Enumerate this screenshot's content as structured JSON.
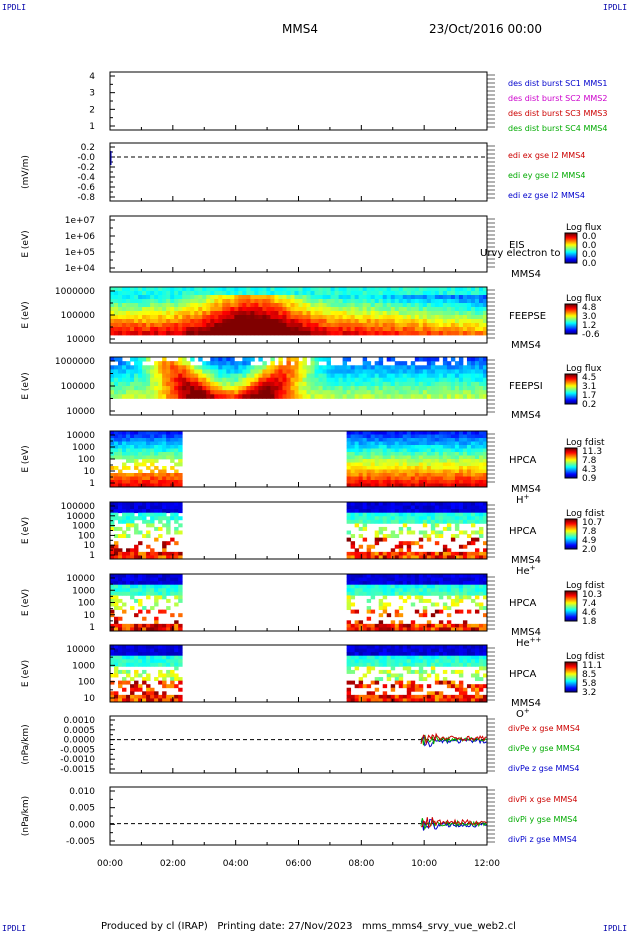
{
  "header": {
    "corner_label": "IPDLI",
    "spacecraft": "MMS4",
    "datetime": "23/Oct/2016 00:00"
  },
  "footer": {
    "text": "Produced by cl (IRAP)   Printing date: 27/Nov/2023   mms_mms4_srvy_vue_web2.cl"
  },
  "colors": {
    "mms1": "#0000cc",
    "mms2": "#cc00cc",
    "mms3": "#cc0000",
    "mms4": "#00aa00",
    "x": "#cc0000",
    "y": "#00aa00",
    "z": "#0000cc"
  },
  "chart_data": [
    {
      "type": "line",
      "panel": "burst",
      "yticks": [
        "4",
        "3",
        "2",
        "1"
      ],
      "ylim": [
        0.5,
        4.5
      ],
      "ylabel": "",
      "legend": [
        {
          "text": "des dist burst SC1 MMS1",
          "color": "#0000cc"
        },
        {
          "text": "des dist burst SC2 MMS2",
          "color": "#cc00cc"
        },
        {
          "text": "des dist burst SC3 MMS3",
          "color": "#cc0000"
        },
        {
          "text": "des dist burst SC4 MMS4",
          "color": "#00aa00"
        }
      ]
    },
    {
      "type": "line",
      "panel": "edi",
      "yticks": [
        "0.2",
        "-0.0",
        "-0.2",
        "-0.4",
        "-0.6",
        "-0.8"
      ],
      "ylim": [
        -0.85,
        0.25
      ],
      "ylabel": "(mV/m)",
      "legend": [
        {
          "text": "edi ex gse l2 MMS4",
          "color": "#cc0000"
        },
        {
          "text": "edi ey gse l2 MMS4",
          "color": "#00aa00"
        },
        {
          "text": "edi ez gse l2 MMS4",
          "color": "#0000cc"
        }
      ]
    },
    {
      "type": "heatmap",
      "panel": "eis",
      "yticks": [
        "1e+07",
        "1e+06",
        "1e+05",
        "1e+04"
      ],
      "ylim": [
        10000,
        10000000
      ],
      "ylabel": "E (eV)",
      "instrument": "EIS",
      "spacecraft": "MMS4",
      "overlay_text": "Urvy electron to",
      "colorbar": {
        "title": "Log flux",
        "ticks": [
          "0.0",
          "0.0",
          "0.0",
          "0.0"
        ]
      }
    },
    {
      "type": "heatmap",
      "panel": "feepse",
      "yticks": [
        "1000000",
        "100000",
        "10000"
      ],
      "ylim": [
        10000,
        1000000
      ],
      "ylabel": "E (eV)",
      "instrument": "FEEPSE",
      "spacecraft": "MMS4",
      "colorbar": {
        "title": "Log flux",
        "ticks": [
          "4.8",
          "3.0",
          "1.2",
          "-0.6"
        ]
      }
    },
    {
      "type": "heatmap",
      "panel": "feepsi",
      "yticks": [
        "1000000",
        "100000",
        "10000"
      ],
      "ylim": [
        10000,
        1000000
      ],
      "ylabel": "E (eV)",
      "instrument": "FEEPSI",
      "spacecraft": "MMS4",
      "colorbar": {
        "title": "Log flux",
        "ticks": [
          "4.5",
          "3.1",
          "1.7",
          "0.2"
        ]
      }
    },
    {
      "type": "heatmap",
      "panel": "hpca-h",
      "yticks": [
        "10000",
        "1000",
        "100",
        "10",
        "1"
      ],
      "ylim": [
        1,
        10000
      ],
      "ylabel": "E (eV)",
      "instrument": "HPCA",
      "spacecraft": "MMS4",
      "species": "H",
      "species_charge": "+",
      "colorbar": {
        "title": "Log fdist",
        "ticks": [
          "11.3",
          "7.8",
          "4.3",
          "0.9"
        ]
      }
    },
    {
      "type": "heatmap",
      "panel": "hpca-he",
      "yticks": [
        "100000",
        "10000",
        "1000",
        "100",
        "10",
        "1"
      ],
      "ylim": [
        1,
        100000
      ],
      "ylabel": "E (eV)",
      "instrument": "HPCA",
      "spacecraft": "MMS4",
      "species": "He",
      "species_charge": "+",
      "colorbar": {
        "title": "Log fdist",
        "ticks": [
          "10.7",
          "7.8",
          "4.9",
          "2.0"
        ]
      }
    },
    {
      "type": "heatmap",
      "panel": "hpca-hepp",
      "yticks": [
        "10000",
        "1000",
        "100",
        "10",
        "1"
      ],
      "ylim": [
        1,
        10000
      ],
      "ylabel": "E (eV)",
      "instrument": "HPCA",
      "spacecraft": "MMS4",
      "species": "He",
      "species_charge": "++",
      "colorbar": {
        "title": "Log fdist",
        "ticks": [
          "10.3",
          "7.4",
          "4.6",
          "1.8"
        ]
      }
    },
    {
      "type": "heatmap",
      "panel": "hpca-o",
      "yticks": [
        "10000",
        "1000",
        "100",
        "10"
      ],
      "ylim": [
        3,
        10000
      ],
      "ylabel": "E (eV)",
      "instrument": "HPCA",
      "spacecraft": "MMS4",
      "species": "O",
      "species_charge": "+",
      "colorbar": {
        "title": "Log fdist",
        "ticks": [
          "11.1",
          "8.5",
          "5.8",
          "3.2"
        ]
      }
    },
    {
      "type": "line",
      "panel": "divpe",
      "yticks": [
        "0.0010",
        "0.0005",
        "0.0000",
        "-0.0005",
        "-0.0010",
        "-0.0015"
      ],
      "ylim": [
        -0.0017,
        0.0012
      ],
      "ylabel": "(nPa/km)",
      "legend": [
        {
          "text": "divPe x gse MMS4",
          "color": "#cc0000"
        },
        {
          "text": "divPe y gse MMS4",
          "color": "#00aa00"
        },
        {
          "text": "divPe z gse MMS4",
          "color": "#0000cc"
        }
      ]
    },
    {
      "type": "line",
      "panel": "divpi",
      "yticks": [
        "0.010",
        "0.005",
        "0.000",
        "-0.005"
      ],
      "ylim": [
        -0.007,
        0.012
      ],
      "ylabel": "(nPa/km)",
      "legend": [
        {
          "text": "divPi x gse MMS4",
          "color": "#cc0000"
        },
        {
          "text": "divPi y gse MMS4",
          "color": "#00aa00"
        },
        {
          "text": "divPi z gse MMS4",
          "color": "#0000cc"
        }
      ]
    }
  ],
  "time_axis": {
    "ticks": [
      "00:00",
      "02:00",
      "04:00",
      "06:00",
      "08:00",
      "10:00",
      "12:00"
    ],
    "range_hours": [
      0,
      12
    ]
  },
  "coverage": {
    "hpca_gaps_hours": [
      [
        2.3,
        7.5
      ]
    ],
    "div_start_hours": 9.9
  }
}
